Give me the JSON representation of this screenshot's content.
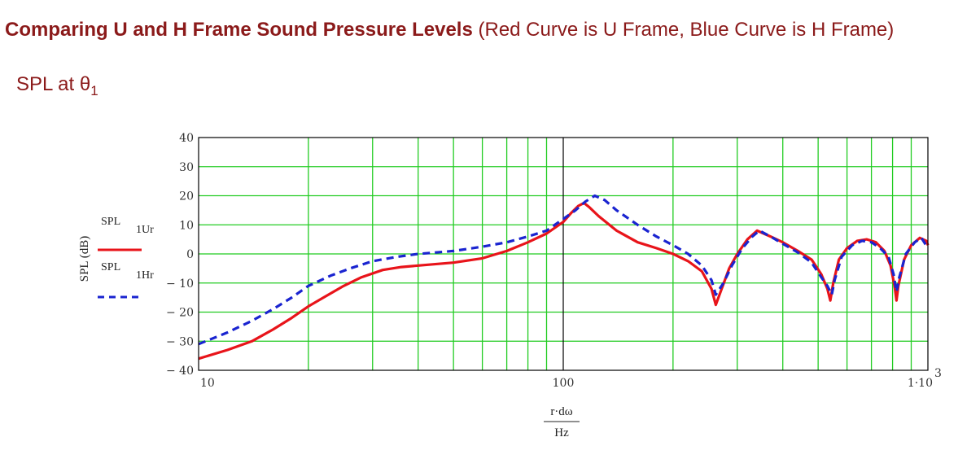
{
  "heading": {
    "bold": "Comparing U and H Frame Sound Pressure Levels",
    "normal": " (Red Curve is U Frame, Blue Curve is H Frame)"
  },
  "subheading": {
    "prefix": "SPL at ",
    "theta": "θ",
    "sub": "1"
  },
  "colors": {
    "title": "#8b1a1a",
    "grid": "#22cc22",
    "u_frame": "#e8141a",
    "h_frame": "#1a24d0",
    "frame": "#000000"
  },
  "chart_data": {
    "type": "line",
    "xscale": "log",
    "xlim": [
      10,
      1000
    ],
    "ylim": [
      -40,
      40
    ],
    "ylabel": "SPL (dB)",
    "xlabel_top": "r·dω",
    "xlabel_bottom": "Hz",
    "x_tick_labels": [
      "10",
      "100",
      "1·10"
    ],
    "x_tick_exponent": "3",
    "y_ticks": [
      40,
      30,
      20,
      10,
      0,
      -10,
      -20,
      -30,
      -40
    ],
    "y_tick_labels": [
      "40",
      "30",
      "20",
      "10",
      "0",
      "− 10",
      "− 20",
      "− 30",
      "− 40"
    ],
    "grid": true,
    "legend": "left",
    "series": [
      {
        "name": "SPL",
        "subscript": "1Ur",
        "style": "solid",
        "points": [
          [
            10,
            -36
          ],
          [
            12,
            -33
          ],
          [
            14,
            -30
          ],
          [
            16,
            -26
          ],
          [
            18,
            -22
          ],
          [
            20,
            -18
          ],
          [
            22,
            -15
          ],
          [
            25,
            -11
          ],
          [
            28,
            -8
          ],
          [
            32,
            -5.5
          ],
          [
            36,
            -4.5
          ],
          [
            40,
            -4
          ],
          [
            50,
            -3
          ],
          [
            60,
            -1.5
          ],
          [
            70,
            1
          ],
          [
            80,
            4
          ],
          [
            90,
            7
          ],
          [
            100,
            11
          ],
          [
            105,
            14
          ],
          [
            110,
            16.5
          ],
          [
            114,
            17.5
          ],
          [
            118,
            16
          ],
          [
            125,
            13
          ],
          [
            140,
            8
          ],
          [
            160,
            4
          ],
          [
            180,
            2
          ],
          [
            200,
            0
          ],
          [
            220,
            -2.5
          ],
          [
            240,
            -6
          ],
          [
            255,
            -12
          ],
          [
            262,
            -17.5
          ],
          [
            270,
            -13
          ],
          [
            285,
            -5
          ],
          [
            300,
            0
          ],
          [
            320,
            5
          ],
          [
            340,
            8
          ],
          [
            370,
            6
          ],
          [
            400,
            4
          ],
          [
            440,
            1
          ],
          [
            480,
            -2
          ],
          [
            510,
            -7
          ],
          [
            530,
            -12
          ],
          [
            540,
            -16
          ],
          [
            550,
            -10
          ],
          [
            570,
            -2
          ],
          [
            600,
            2
          ],
          [
            640,
            4.5
          ],
          [
            680,
            5
          ],
          [
            720,
            4
          ],
          [
            760,
            1
          ],
          [
            790,
            -4
          ],
          [
            810,
            -11
          ],
          [
            820,
            -16
          ],
          [
            830,
            -11
          ],
          [
            860,
            -2
          ],
          [
            900,
            3
          ],
          [
            950,
            5.5
          ],
          [
            990,
            4.5
          ],
          [
            1000,
            3
          ]
        ]
      },
      {
        "name": "SPL",
        "subscript": "1Hr",
        "style": "dashed",
        "points": [
          [
            10,
            -31
          ],
          [
            12,
            -27
          ],
          [
            14,
            -23
          ],
          [
            16,
            -19
          ],
          [
            18,
            -15
          ],
          [
            20,
            -11
          ],
          [
            23,
            -7.5
          ],
          [
            26,
            -5
          ],
          [
            30,
            -2.5
          ],
          [
            35,
            -1
          ],
          [
            40,
            0
          ],
          [
            50,
            1
          ],
          [
            60,
            2.5
          ],
          [
            70,
            4
          ],
          [
            80,
            6
          ],
          [
            90,
            8
          ],
          [
            100,
            12
          ],
          [
            108,
            15
          ],
          [
            115,
            18
          ],
          [
            122,
            20
          ],
          [
            130,
            18.5
          ],
          [
            140,
            15
          ],
          [
            160,
            10
          ],
          [
            180,
            6
          ],
          [
            200,
            3
          ],
          [
            220,
            0
          ],
          [
            240,
            -4
          ],
          [
            255,
            -9
          ],
          [
            262,
            -14
          ],
          [
            275,
            -10
          ],
          [
            290,
            -4
          ],
          [
            310,
            2
          ],
          [
            330,
            6
          ],
          [
            345,
            8
          ],
          [
            370,
            6
          ],
          [
            400,
            3.5
          ],
          [
            440,
            0.5
          ],
          [
            480,
            -3
          ],
          [
            510,
            -8
          ],
          [
            530,
            -11
          ],
          [
            545,
            -14
          ],
          [
            555,
            -9
          ],
          [
            580,
            -1
          ],
          [
            620,
            3
          ],
          [
            660,
            4.5
          ],
          [
            700,
            4
          ],
          [
            740,
            2
          ],
          [
            780,
            -1
          ],
          [
            805,
            -7
          ],
          [
            820,
            -13
          ],
          [
            835,
            -8
          ],
          [
            870,
            0
          ],
          [
            920,
            4
          ],
          [
            960,
            5.5
          ],
          [
            1000,
            2
          ]
        ]
      }
    ]
  }
}
